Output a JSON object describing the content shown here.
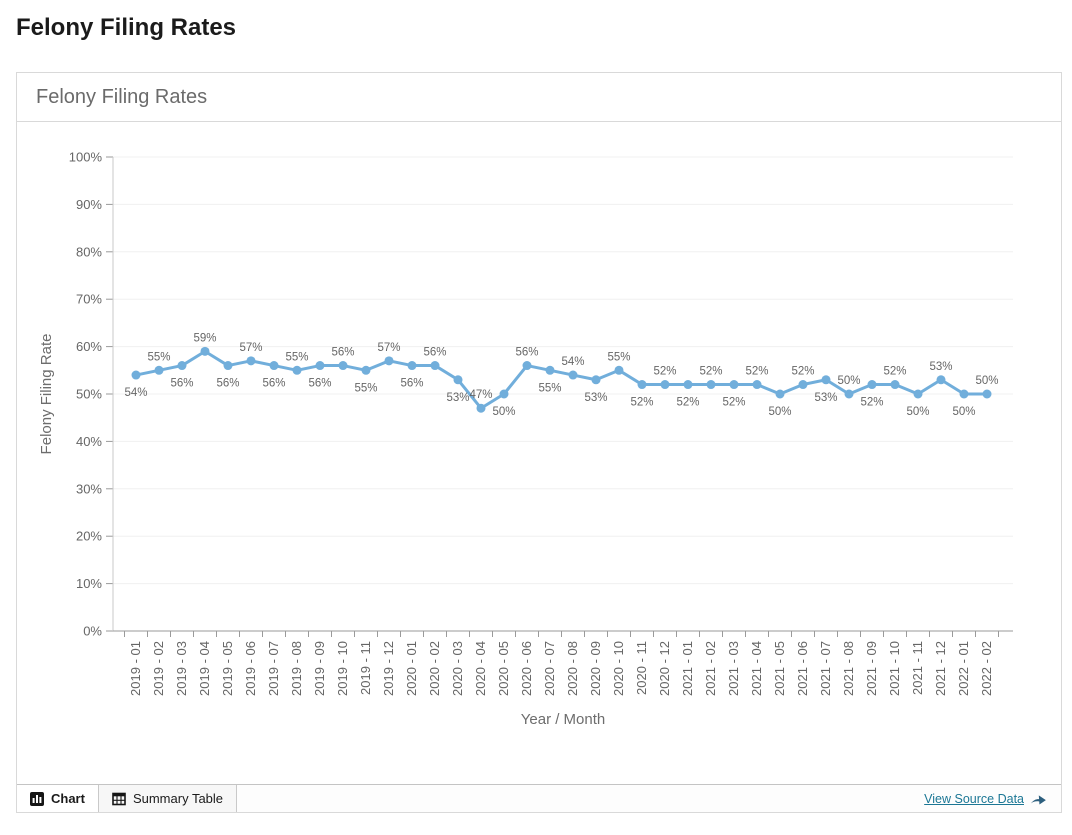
{
  "page": {
    "title": "Felony Filing Rates"
  },
  "card": {
    "title": "Felony Filing Rates"
  },
  "footer": {
    "tabs": [
      {
        "label": "Chart",
        "icon": "bar-chart-icon",
        "active": true
      },
      {
        "label": "Summary Table",
        "icon": "table-icon",
        "active": false
      }
    ],
    "source_link": {
      "label": "View Source Data",
      "icon": "arrow-right-icon"
    }
  },
  "colors": {
    "line": "#71aedb",
    "grid": "#f0f0f0",
    "axis": "#9a9a9a",
    "y_axis_line": "#c9c9c9",
    "label": "#666666",
    "axis_title": "#6d6d6d",
    "link": "#1c7795",
    "arrow": "#2d5f7e",
    "card_border": "#d9d9d9"
  },
  "chart_data": {
    "type": "line",
    "title": "Felony Filing Rates",
    "xlabel": "Year / Month",
    "ylabel": "Felony Filing Rate",
    "ylim": [
      0,
      100
    ],
    "y_tick_step": 10,
    "y_tick_format": "percent",
    "grid": "horizontal",
    "legend": false,
    "marker": "circle",
    "data_labels": "percent, alternating below/above starting below",
    "categories": [
      "2019 - 01",
      "2019 - 02",
      "2019 - 03",
      "2019 - 04",
      "2019 - 05",
      "2019 - 06",
      "2019 - 07",
      "2019 - 08",
      "2019 - 09",
      "2019 - 10",
      "2019 - 11",
      "2019 - 12",
      "2020 - 01",
      "2020 - 02",
      "2020 - 03",
      "2020 - 04",
      "2020 - 05",
      "2020 - 06",
      "2020 - 07",
      "2020 - 08",
      "2020 - 09",
      "2020 - 10",
      "2020 - 11",
      "2020 - 12",
      "2021 - 01",
      "2021 - 02",
      "2021 - 03",
      "2021 - 04",
      "2021 - 05",
      "2021 - 06",
      "2021 - 07",
      "2021 - 08",
      "2021 - 09",
      "2021 - 10",
      "2021 - 11",
      "2021 - 12",
      "2022 - 01",
      "2022 - 02"
    ],
    "values": [
      54,
      55,
      56,
      59,
      56,
      57,
      56,
      55,
      56,
      56,
      55,
      57,
      56,
      56,
      53,
      47,
      50,
      56,
      55,
      54,
      53,
      55,
      52,
      52,
      52,
      52,
      52,
      52,
      50,
      52,
      53,
      50,
      52,
      52,
      50,
      53,
      50,
      50
    ]
  }
}
